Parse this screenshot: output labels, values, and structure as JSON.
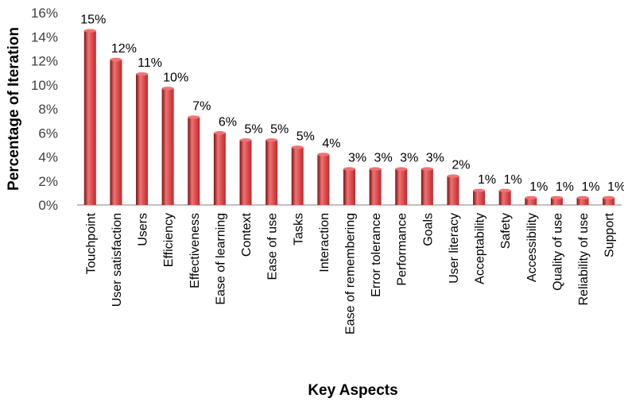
{
  "chart_data": {
    "type": "bar",
    "title": "",
    "xlabel": "Key Aspects",
    "ylabel": "Percentage of Iteration",
    "ylim": [
      0,
      16
    ],
    "yticks": [
      "0%",
      "2%",
      "4%",
      "6%",
      "8%",
      "10%",
      "12%",
      "14%",
      "16%"
    ],
    "grid": false,
    "legend": "none",
    "categories": [
      "Touchpoint",
      "User satisfaction",
      "Users",
      "Efficiency",
      "Effectiveness",
      "Ease of learning",
      "Context",
      "Ease of use",
      "Tasks",
      "Interaction",
      "Ease of remembering",
      "Error tolerance",
      "Performance",
      "Goals",
      "User literacy",
      "Acceptability",
      "Safety",
      "Accessibility",
      "Quality of use",
      "Reliability of use",
      "Support"
    ],
    "values": [
      14.5,
      12.1,
      10.9,
      9.7,
      7.3,
      6.0,
      5.4,
      5.4,
      4.8,
      4.2,
      3.0,
      3.0,
      3.0,
      3.0,
      2.4,
      1.2,
      1.2,
      0.6,
      0.6,
      0.6,
      0.6
    ],
    "data_labels": [
      "15%",
      "12%",
      "11%",
      "10%",
      "7%",
      "6%",
      "5%",
      "5%",
      "5%",
      "4%",
      "3%",
      "3%",
      "3%",
      "3%",
      "2%",
      "1%",
      "1%",
      "1%",
      "1%",
      "1%",
      "1%"
    ],
    "colors": {
      "bar": "#c0282b",
      "bar_light": "#f07272",
      "bar_dark": "#7a1014",
      "axis": "#808080"
    }
  }
}
